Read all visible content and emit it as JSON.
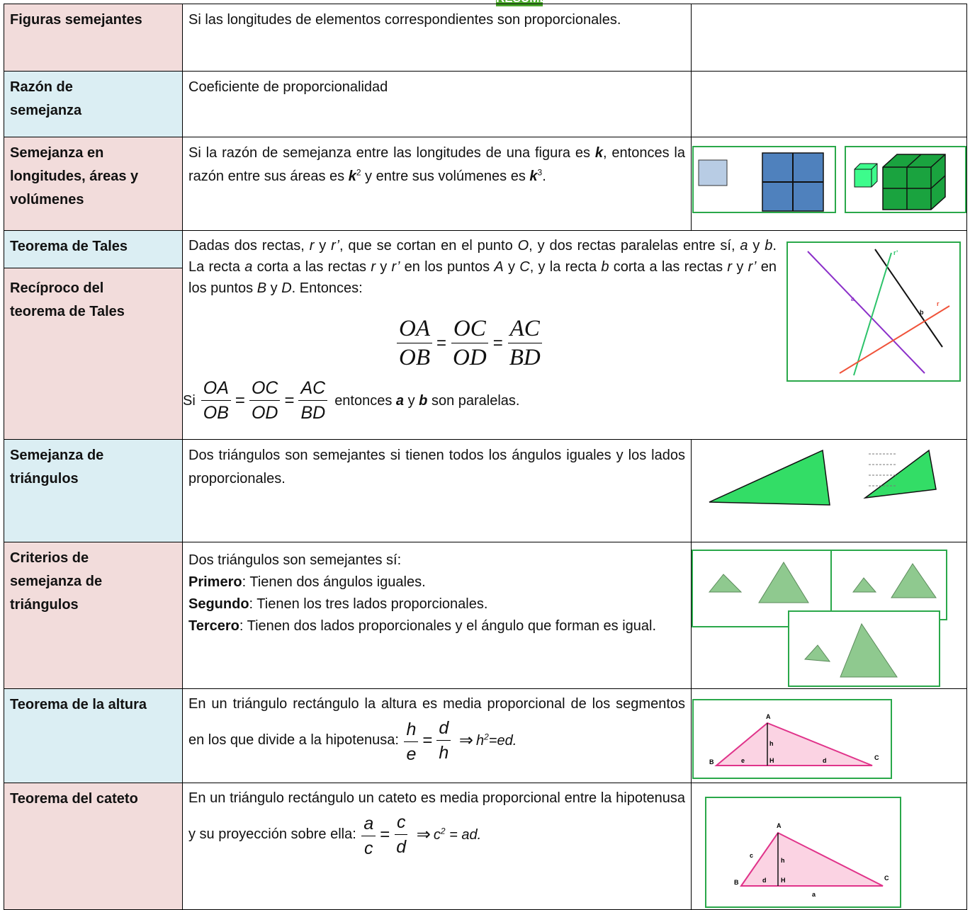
{
  "header": {
    "title": "RESUMEN"
  },
  "table": {
    "rows": [
      {
        "term": "Figuras semejantes",
        "definition": [
          "Si las longitudes de elementos correspondientes son proporcionales."
        ]
      },
      {
        "term": "Razón de semejanza",
        "definition": [
          "Coeficiente de proporcionalidad"
        ]
      },
      {
        "term": "Semejanza en longitudes, áreas y volúmenes",
        "definition": [
          "Si la razón de semejanza entre las longitudes de una figura es ",
          "k",
          ", entonces la razón entre sus áreas es ",
          "k",
          "2",
          " y entre sus volúmenes es ",
          "k",
          "3",
          "."
        ]
      },
      {
        "term": "Teorema de Tales",
        "term2": "Recíproco del teorema de Tales",
        "definition": [
          "Dadas dos rectas, ",
          "r",
          " y ",
          "r’",
          ", que se cortan en el punto ",
          "O",
          ", y dos rectas paralelas entre sí, ",
          "a",
          " y ",
          "b",
          ". La recta ",
          "a",
          " corta a las rectas ",
          "r",
          " y ",
          "r’",
          " en los puntos ",
          "A",
          " y ",
          "C",
          ", y la recta ",
          "b",
          " corta a las rectas ",
          "r",
          " y ",
          "r’",
          " en los puntos ",
          "B",
          " y ",
          "D",
          ". Entonces:"
        ],
        "formula": [
          "OA",
          "OB",
          "=",
          "OC",
          "OD",
          "=",
          "AC",
          "BD"
        ],
        "converse": [
          "Si",
          "OA",
          "OB",
          "=",
          "OC",
          "OD",
          "=",
          "AC",
          "BD",
          "entonces ",
          "a",
          " y ",
          "b",
          " son paralelas."
        ],
        "figure_labels": [
          "a",
          "b",
          "r",
          "r’"
        ]
      },
      {
        "term": "Semejanza de triángulos",
        "definition": [
          "Dos triángulos son semejantes si tienen todos los ángulos iguales y los lados proporcionales."
        ]
      },
      {
        "term": "Criterios de semejanza de triángulos",
        "definition": [
          "Dos triángulos son semejantes sí:",
          "Primero",
          ": Tienen dos ángulos iguales.",
          "Segundo",
          ": Tienen los tres lados proporcionales.",
          "Tercero",
          ": Tienen dos lados proporcionales y el ángulo que forman es igual."
        ]
      },
      {
        "term": "Teorema de la altura",
        "definition": [
          "En un triángulo rectángulo la altura es media proporcional de los segmentos en los que divide a la hipotenusa: "
        ],
        "formula": [
          "h",
          "e",
          "=",
          "d",
          "h",
          "⇒",
          "h",
          "2",
          "=ed."
        ],
        "figure_labels": [
          "A",
          "B",
          "C",
          "H",
          "h",
          "e",
          "d"
        ]
      },
      {
        "term": "Teorema del cateto",
        "definition": [
          "En un triángulo rectángulo un cateto es media proporcional entre la hipotenusa y su proyección sobre ella: "
        ],
        "formula": [
          "a",
          "c",
          "=",
          "c",
          "d",
          "⇒",
          "c",
          "2",
          " = ad."
        ],
        "figure_labels": [
          "A",
          "B",
          "C",
          "H",
          "h",
          "c",
          "d",
          "a"
        ]
      }
    ]
  }
}
